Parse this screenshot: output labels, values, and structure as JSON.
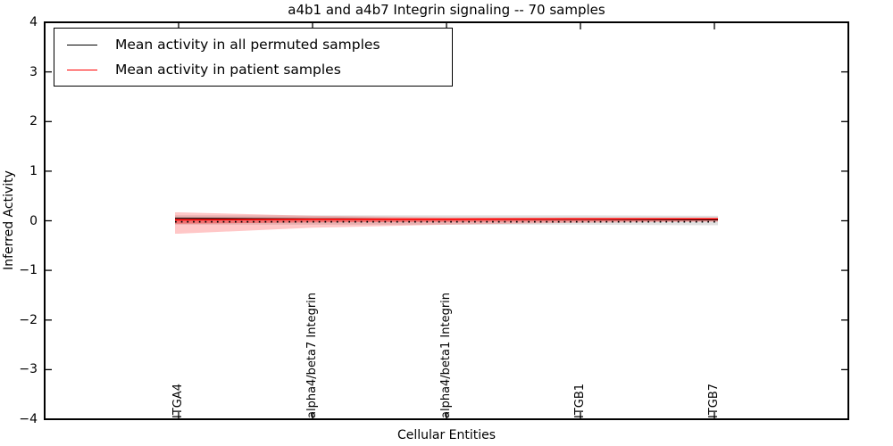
{
  "title": "a4b1 and a4b7 Integrin signaling -- 70 samples",
  "axes": {
    "xlabel": "Cellular Entities",
    "ylabel": "Inferred Activity",
    "ytick_labels": [
      "4",
      "3",
      "2",
      "1",
      "0",
      "−1",
      "−2",
      "−3",
      "−4"
    ],
    "ytick_values": [
      4,
      3,
      2,
      1,
      0,
      -1,
      -2,
      -3,
      -4
    ]
  },
  "legend": {
    "items": [
      {
        "label": "Mean activity in all permuted samples",
        "color": "#000000"
      },
      {
        "label": "Mean activity in patient samples",
        "color": "#ff0000"
      }
    ]
  },
  "chart_data": {
    "type": "line",
    "title": "a4b1 and a4b7 Integrin signaling -- 70 samples",
    "xlabel": "Cellular Entities",
    "ylabel": "Inferred Activity",
    "ylim": [
      -4,
      4
    ],
    "yticks": [
      4,
      3,
      2,
      1,
      0,
      -1,
      -2,
      -3,
      -4
    ],
    "grid": false,
    "legend_position": "upper left",
    "categories": [
      "ITGA4",
      "alpha4/beta7 Integrin",
      "alpha4/beta1 Integrin",
      "ITGB1",
      "ITGB7"
    ],
    "series": [
      {
        "name": "Mean activity in all permuted samples",
        "color": "#000000",
        "style": "solid",
        "width": 1.2,
        "values": [
          0.05,
          0.04,
          0.03,
          0.03,
          0.02
        ]
      },
      {
        "name": "Mean activity in patient samples",
        "color": "#ff0000",
        "style": "solid",
        "width": 1.6,
        "values": [
          0.02,
          0.03,
          0.03,
          0.04,
          0.04
        ]
      },
      {
        "name": "Permuted reference (dotted)",
        "color": "#000000",
        "style": "dotted",
        "width": 1.7,
        "values": [
          -0.02,
          -0.02,
          -0.02,
          -0.02,
          -0.02
        ]
      }
    ],
    "bands": [
      {
        "name": "Permuted samples spread",
        "color": "#000000",
        "opacity": 0.12,
        "upper": [
          0.11,
          0.11,
          0.11,
          0.11,
          0.1
        ],
        "lower": [
          -0.08,
          -0.08,
          -0.08,
          -0.08,
          -0.09
        ]
      },
      {
        "name": "Patient samples spread (outer)",
        "color": "#ff0000",
        "opacity": 0.22,
        "upper": [
          0.17,
          0.1,
          0.07,
          0.05,
          0.04
        ],
        "lower": [
          -0.26,
          -0.14,
          -0.08,
          -0.04,
          -0.02
        ]
      },
      {
        "name": "Patient samples spread (inner)",
        "color": "#ff0000",
        "opacity": 0.35,
        "upper": [
          0.06,
          0.05,
          0.05,
          0.05,
          0.05
        ],
        "lower": [
          -0.06,
          -0.03,
          -0.02,
          -0.01,
          0.0
        ]
      }
    ]
  }
}
